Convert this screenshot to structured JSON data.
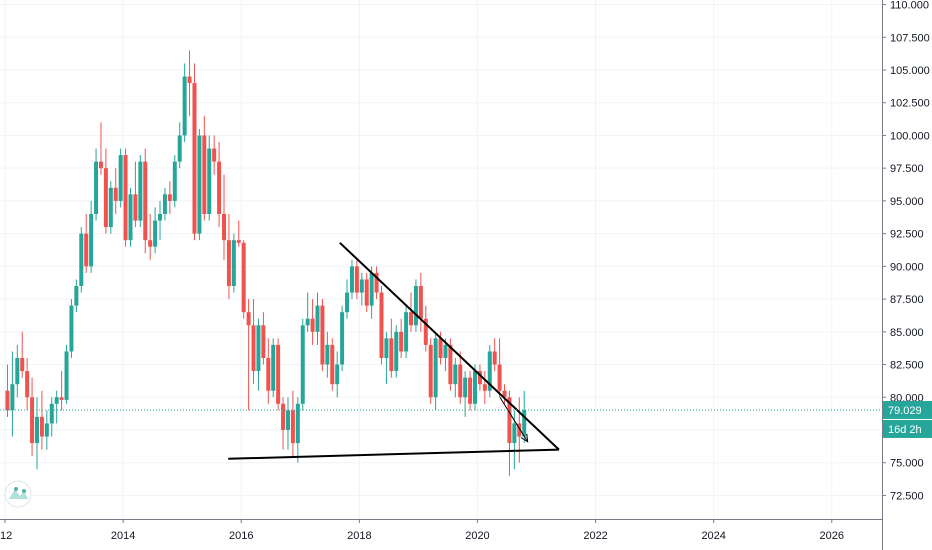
{
  "colors": {
    "up": "#26a69a",
    "down": "#ef5350",
    "price_line": "#26a69a",
    "grid": "#f0f3fa",
    "axis_text": "#131722",
    "drawing": "#000000",
    "background": "#ffffff"
  },
  "logo": {
    "icon": "tradingview-logo-icon"
  },
  "price_badge": {
    "value": "79.029",
    "countdown": "16d 2h"
  },
  "chart_data": {
    "type": "candlestick",
    "timeframe": "monthly",
    "grid": true,
    "y_axis_position": "right",
    "x_tick_labels": [
      "12",
      "2014",
      "2016",
      "2018",
      "2020",
      "2022",
      "2024",
      "2026"
    ],
    "x_tick_years": [
      2012,
      2014,
      2016,
      2018,
      2020,
      2022,
      2024,
      2026
    ],
    "xlim": [
      2012.0,
      2026.85
    ],
    "y_tick_labels": [
      "72.500",
      "75.000",
      "77.500",
      "80.000",
      "82.500",
      "85.000",
      "87.500",
      "90.000",
      "92.500",
      "95.000",
      "97.500",
      "100.000",
      "102.500",
      "105.000",
      "107.500",
      "110.000"
    ],
    "ylim": [
      70.7,
      110.5
    ],
    "last_price": 79.029,
    "start": {
      "year": 2012,
      "month": 1
    },
    "candles": [
      [
        80.5,
        82.5,
        78.5,
        79.0
      ],
      [
        79.0,
        83.5,
        77.0,
        81.0
      ],
      [
        81.0,
        84.0,
        80.0,
        83.0
      ],
      [
        83.0,
        85.0,
        81.5,
        82.0
      ],
      [
        82.0,
        83.0,
        79.0,
        80.0
      ],
      [
        80.0,
        81.5,
        75.5,
        76.5
      ],
      [
        76.5,
        80.0,
        74.5,
        78.5
      ],
      [
        78.5,
        80.5,
        76.0,
        77.0
      ],
      [
        77.0,
        79.0,
        76.0,
        78.0
      ],
      [
        78.0,
        80.0,
        77.0,
        79.5
      ],
      [
        79.5,
        80.5,
        78.0,
        80.0
      ],
      [
        80.0,
        82.0,
        79.0,
        79.8
      ],
      [
        79.8,
        84.0,
        79.5,
        83.5
      ],
      [
        83.5,
        87.5,
        83.0,
        87.0
      ],
      [
        87.0,
        89.0,
        86.5,
        88.5
      ],
      [
        88.5,
        93.0,
        88.0,
        92.5
      ],
      [
        92.5,
        94.0,
        89.5,
        90.0
      ],
      [
        90.0,
        95.0,
        89.5,
        94.0
      ],
      [
        94.0,
        99.0,
        93.5,
        98.0
      ],
      [
        98.0,
        101.0,
        97.0,
        97.5
      ],
      [
        97.5,
        99.0,
        92.5,
        93.0
      ],
      [
        93.0,
        96.5,
        92.5,
        96.0
      ],
      [
        96.0,
        97.5,
        94.0,
        95.0
      ],
      [
        95.0,
        99.0,
        94.5,
        98.5
      ],
      [
        98.5,
        99.0,
        91.5,
        92.0
      ],
      [
        92.0,
        96.0,
        91.5,
        95.5
      ],
      [
        95.5,
        98.0,
        93.0,
        93.5
      ],
      [
        93.5,
        98.5,
        93.0,
        98.0
      ],
      [
        98.0,
        99.0,
        91.0,
        92.0
      ],
      [
        92.0,
        94.0,
        90.5,
        91.5
      ],
      [
        91.5,
        94.5,
        91.0,
        93.5
      ],
      [
        93.5,
        95.0,
        92.0,
        94.0
      ],
      [
        94.0,
        96.0,
        93.5,
        95.5
      ],
      [
        95.5,
        96.5,
        94.0,
        95.0
      ],
      [
        95.0,
        98.5,
        94.5,
        98.0
      ],
      [
        98.0,
        101.0,
        97.5,
        100.0
      ],
      [
        100.0,
        105.5,
        99.5,
        104.5
      ],
      [
        104.5,
        106.5,
        101.5,
        104.0
      ],
      [
        104.0,
        105.5,
        92.0,
        92.5
      ],
      [
        92.5,
        100.5,
        92.0,
        100.0
      ],
      [
        100.0,
        101.5,
        93.5,
        94.0
      ],
      [
        94.0,
        100.0,
        93.5,
        99.0
      ],
      [
        99.0,
        100.0,
        97.0,
        98.0
      ],
      [
        98.0,
        99.5,
        93.0,
        94.0
      ],
      [
        94.0,
        97.0,
        90.5,
        92.0
      ],
      [
        92.0,
        94.0,
        87.5,
        88.5
      ],
      [
        88.5,
        92.5,
        88.0,
        92.0
      ],
      [
        92.0,
        93.5,
        91.5,
        91.8
      ],
      [
        91.8,
        92.0,
        86.0,
        86.5
      ],
      [
        86.5,
        87.5,
        79.0,
        85.5
      ],
      [
        85.5,
        87.5,
        81.0,
        82.0
      ],
      [
        82.0,
        86.0,
        80.5,
        85.5
      ],
      [
        85.5,
        86.5,
        82.5,
        83.0
      ],
      [
        83.0,
        84.5,
        79.5,
        80.5
      ],
      [
        80.5,
        84.5,
        80.0,
        84.0
      ],
      [
        84.0,
        84.5,
        79.0,
        79.5
      ],
      [
        79.5,
        80.0,
        76.0,
        77.5
      ],
      [
        77.5,
        80.0,
        76.0,
        79.0
      ],
      [
        79.0,
        80.5,
        75.5,
        76.5
      ],
      [
        76.5,
        80.0,
        75.0,
        79.5
      ],
      [
        79.5,
        86.0,
        79.0,
        85.5
      ],
      [
        85.5,
        88.0,
        85.0,
        86.0
      ],
      [
        86.0,
        87.5,
        84.0,
        85.0
      ],
      [
        85.0,
        88.0,
        84.0,
        87.0
      ],
      [
        87.0,
        87.5,
        82.0,
        82.5
      ],
      [
        82.5,
        85.0,
        81.5,
        84.0
      ],
      [
        84.0,
        84.5,
        80.5,
        81.0
      ],
      [
        81.0,
        83.5,
        80.0,
        82.5
      ],
      [
        82.5,
        87.0,
        82.0,
        86.5
      ],
      [
        86.5,
        89.0,
        86.0,
        88.0
      ],
      [
        88.0,
        90.5,
        87.5,
        90.0
      ],
      [
        90.0,
        90.5,
        87.5,
        88.0
      ],
      [
        88.0,
        89.5,
        87.0,
        89.0
      ],
      [
        89.0,
        89.5,
        86.5,
        87.0
      ],
      [
        87.0,
        90.0,
        86.0,
        89.5
      ],
      [
        89.5,
        90.0,
        87.5,
        88.0
      ],
      [
        88.0,
        88.5,
        82.5,
        83.0
      ],
      [
        83.0,
        85.0,
        81.0,
        84.5
      ],
      [
        84.5,
        86.0,
        81.5,
        82.0
      ],
      [
        82.0,
        85.5,
        81.5,
        85.0
      ],
      [
        85.0,
        86.0,
        83.0,
        83.5
      ],
      [
        83.5,
        87.0,
        83.0,
        86.5
      ],
      [
        86.5,
        88.0,
        85.0,
        85.5
      ],
      [
        85.5,
        89.0,
        85.0,
        88.5
      ],
      [
        88.5,
        89.5,
        85.0,
        86.0
      ],
      [
        86.0,
        87.0,
        83.5,
        84.0
      ],
      [
        84.0,
        84.5,
        79.5,
        80.0
      ],
      [
        80.0,
        85.0,
        79.0,
        84.5
      ],
      [
        84.5,
        85.0,
        82.5,
        83.0
      ],
      [
        83.0,
        84.5,
        82.0,
        84.0
      ],
      [
        84.0,
        84.5,
        80.5,
        81.0
      ],
      [
        81.0,
        83.0,
        80.0,
        82.5
      ],
      [
        82.5,
        83.5,
        79.5,
        80.0
      ],
      [
        80.0,
        82.0,
        78.5,
        81.5
      ],
      [
        81.5,
        82.0,
        79.0,
        79.5
      ],
      [
        79.5,
        82.5,
        79.0,
        82.0
      ],
      [
        82.0,
        82.5,
        80.5,
        81.0
      ],
      [
        81.0,
        82.0,
        79.5,
        80.5
      ],
      [
        80.5,
        84.0,
        80.0,
        83.5
      ],
      [
        83.5,
        84.5,
        82.0,
        82.5
      ],
      [
        82.5,
        84.5,
        80.0,
        80.5
      ],
      [
        80.5,
        81.0,
        79.5,
        80.0
      ],
      [
        80.0,
        80.5,
        74.0,
        76.5
      ],
      [
        76.5,
        79.0,
        74.5,
        78.0
      ],
      [
        78.0,
        80.0,
        75.0,
        77.0
      ],
      [
        77.0,
        80.5,
        76.5,
        79.029
      ]
    ],
    "annotations": [
      {
        "type": "trendline",
        "from": [
          2017.67,
          91.8
        ],
        "to": [
          2021.38,
          76.0
        ]
      },
      {
        "type": "trendline",
        "from": [
          2015.78,
          75.3
        ],
        "to": [
          2021.38,
          76.0
        ]
      },
      {
        "type": "arrow",
        "from": [
          2020.38,
          80.0
        ],
        "to": [
          2020.85,
          76.6
        ]
      }
    ]
  }
}
